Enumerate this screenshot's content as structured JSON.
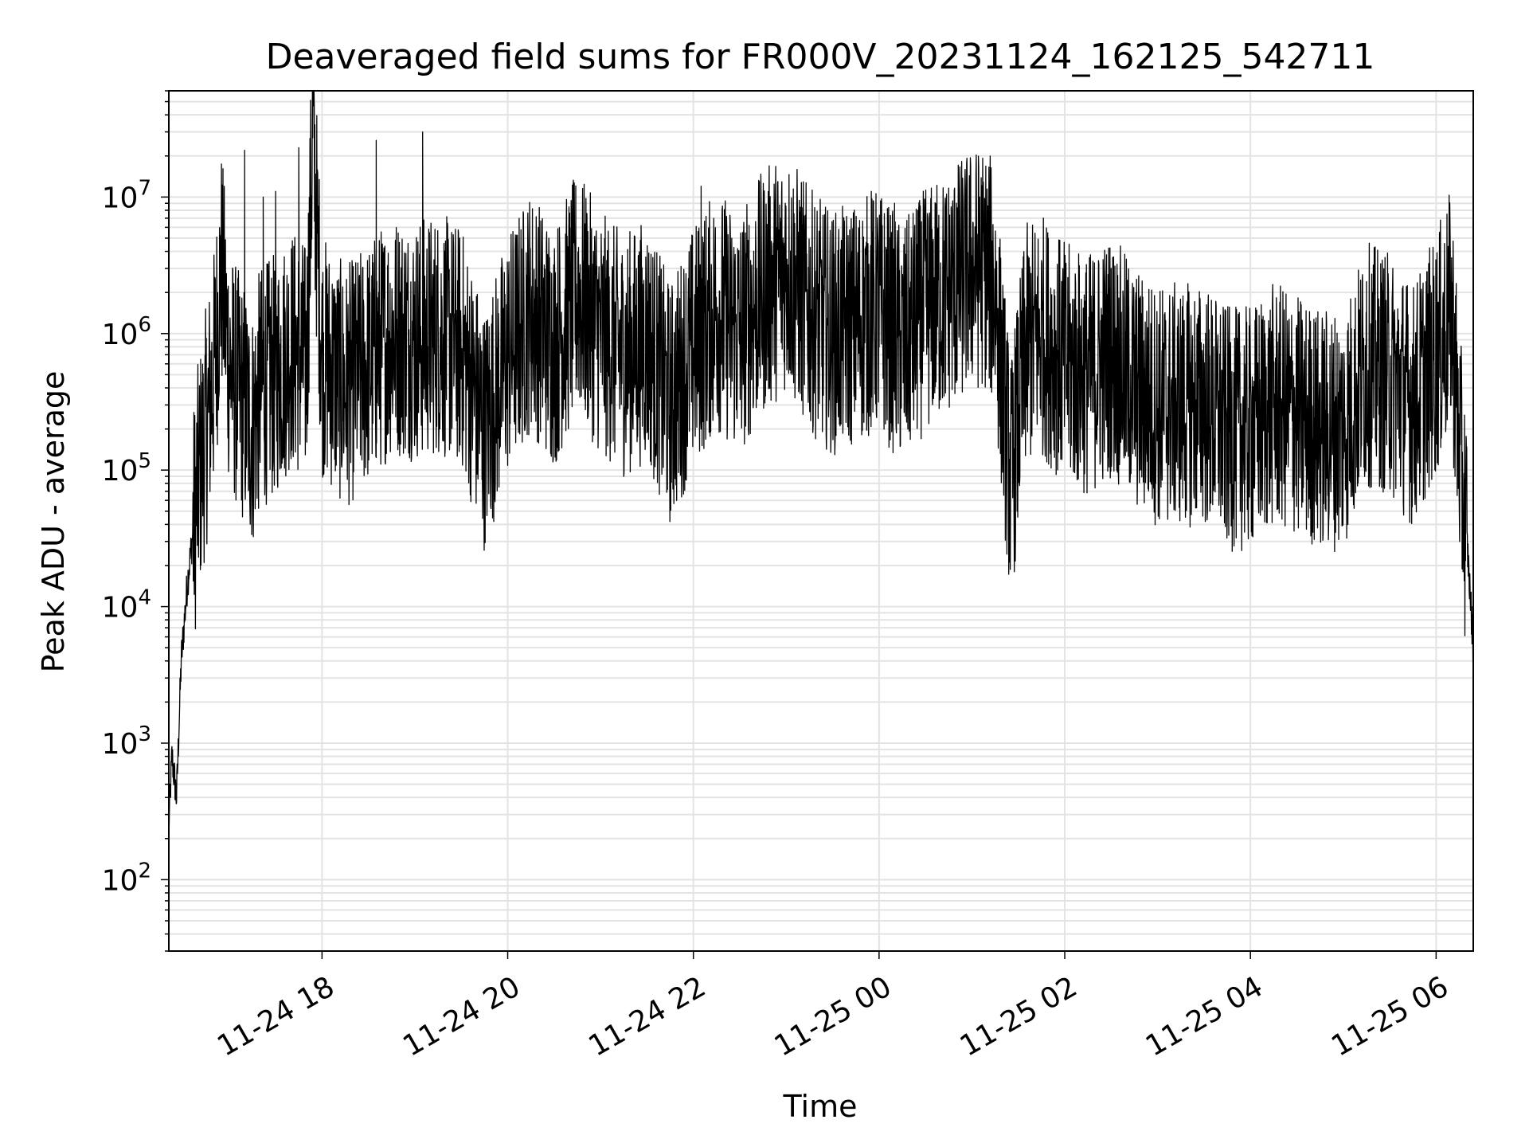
{
  "chart_data": {
    "type": "line",
    "title": "Deaveraged field sums for FR000V_20231124_162125_542711",
    "xlabel": "Time",
    "ylabel": "Peak ADU - average",
    "x_scale": "time",
    "y_scale": "log",
    "xlim": [
      "2023-11-24 16:21",
      "2023-11-25 06:24"
    ],
    "ylim": [
      30,
      60000000
    ],
    "grid": true,
    "x_tick_labels": [
      "11-24 18",
      "11-24 20",
      "11-24 22",
      "11-25 00",
      "11-25 02",
      "11-25 04",
      "11-25 06"
    ],
    "y_tick_labels": [
      {
        "base": "10",
        "exp": "2"
      },
      {
        "base": "10",
        "exp": "3"
      },
      {
        "base": "10",
        "exp": "4"
      },
      {
        "base": "10",
        "exp": "5"
      },
      {
        "base": "10",
        "exp": "6"
      },
      {
        "base": "10",
        "exp": "7"
      }
    ],
    "series": [
      {
        "color": "#000000",
        "x": [
          "2023-11-24 16:21",
          "2023-11-24 16:23",
          "2023-11-24 16:26",
          "2023-11-24 16:29",
          "2023-11-24 16:33",
          "2023-11-24 16:36",
          "2023-11-24 16:40",
          "2023-11-24 16:45",
          "2023-11-24 16:50",
          "2023-11-24 16:55",
          "2023-11-24 17:00",
          "2023-11-24 17:05",
          "2023-11-24 17:10",
          "2023-11-24 17:15",
          "2023-11-24 17:20",
          "2023-11-24 17:30",
          "2023-11-24 17:40",
          "2023-11-24 17:50",
          "2023-11-24 17:54",
          "2023-11-24 18:00",
          "2023-11-24 18:15",
          "2023-11-24 18:30",
          "2023-11-24 18:45",
          "2023-11-24 19:00",
          "2023-11-24 19:15",
          "2023-11-24 19:30",
          "2023-11-24 19:45",
          "2023-11-24 20:00",
          "2023-11-24 20:15",
          "2023-11-24 20:30",
          "2023-11-24 20:45",
          "2023-11-24 21:00",
          "2023-11-24 21:15",
          "2023-11-24 21:30",
          "2023-11-24 21:45",
          "2023-11-24 22:00",
          "2023-11-24 22:15",
          "2023-11-24 22:30",
          "2023-11-24 22:45",
          "2023-11-24 23:00",
          "2023-11-24 23:15",
          "2023-11-24 23:30",
          "2023-11-24 23:45",
          "2023-11-25 00:00",
          "2023-11-25 00:15",
          "2023-11-25 00:30",
          "2023-11-25 00:45",
          "2023-11-25 01:00",
          "2023-11-25 01:10",
          "2023-11-25 01:15",
          "2023-11-25 01:25",
          "2023-11-25 01:35",
          "2023-11-25 01:45",
          "2023-11-25 02:00",
          "2023-11-25 02:15",
          "2023-11-25 02:30",
          "2023-11-25 02:45",
          "2023-11-25 03:00",
          "2023-11-25 03:15",
          "2023-11-25 03:30",
          "2023-11-25 03:45",
          "2023-11-25 04:00",
          "2023-11-25 04:15",
          "2023-11-25 04:30",
          "2023-11-25 04:45",
          "2023-11-25 05:00",
          "2023-11-25 05:15",
          "2023-11-25 05:30",
          "2023-11-25 05:45",
          "2023-11-25 06:00",
          "2023-11-25 06:05",
          "2023-11-25 06:10",
          "2023-11-25 06:15",
          "2023-11-25 06:20",
          "2023-11-25 06:24"
        ],
        "y": [
          250,
          800,
          400,
          4000,
          15000,
          30000,
          80000,
          200000,
          500000,
          3000000,
          600000,
          400000,
          300000,
          200000,
          400000,
          500000,
          800000,
          600000,
          30000000,
          700000,
          400000,
          600000,
          1000000,
          900000,
          1000000,
          800000,
          200000,
          700000,
          1500000,
          800000,
          2000000,
          1000000,
          700000,
          900000,
          300000,
          800000,
          1500000,
          1000000,
          2000000,
          3000000,
          1500000,
          1000000,
          1200000,
          1500000,
          800000,
          1500000,
          2000000,
          3000000,
          3000000,
          2000000,
          80000,
          800000,
          1000000,
          600000,
          500000,
          700000,
          400000,
          300000,
          300000,
          300000,
          200000,
          200000,
          300000,
          250000,
          200000,
          200000,
          600000,
          500000,
          300000,
          700000,
          1000000,
          1500000,
          150000,
          30000,
          5000
        ]
      }
    ],
    "spikes": {
      "x": [
        "2023-11-24 17:10",
        "2023-11-24 17:22",
        "2023-11-24 17:30",
        "2023-11-24 17:45",
        "2023-11-24 17:54",
        "2023-11-24 18:35",
        "2023-11-24 19:05",
        "2023-11-24 20:05",
        "2023-11-24 20:40",
        "2023-11-24 22:05",
        "2023-11-24 22:20",
        "2023-11-24 23:10",
        "2023-11-24 23:55",
        "2023-11-25 00:10",
        "2023-11-25 00:25",
        "2023-11-25 00:50",
        "2023-11-25 01:05",
        "2023-11-25 05:15"
      ],
      "y": [
        22000000,
        10000000,
        11000000,
        23000000,
        32000000,
        26000000,
        30000000,
        2000000,
        6000000,
        12000000,
        8000000,
        8000000,
        11000000,
        9000000,
        8000000,
        9000000,
        10000000,
        2400000
      ]
    }
  }
}
